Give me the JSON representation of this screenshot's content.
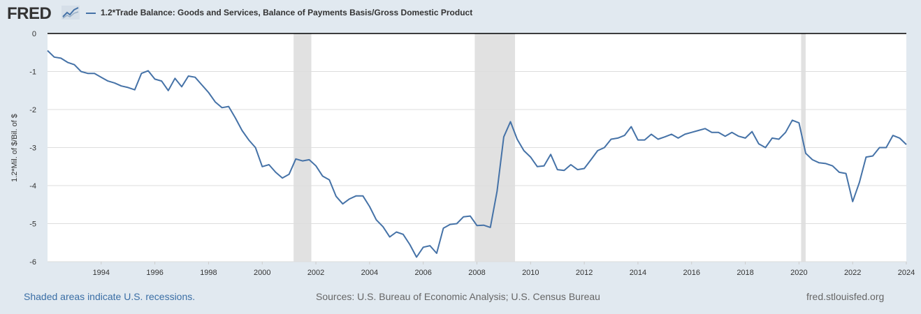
{
  "header": {
    "logo_text": "FRED",
    "series_title": "1.2*Trade Balance: Goods and Services, Balance of Payments Basis/Gross Domestic Product"
  },
  "footer": {
    "recession_note": "Shaded areas indicate U.S. recessions.",
    "sources": "Sources: U.S. Bureau of Economic Analysis; U.S. Census Bureau",
    "site": "fred.stlouisfed.org"
  },
  "colors": {
    "line": "#4572a7",
    "recession": "#e1e1e1",
    "grid": "#dddddd",
    "background": "#e1e9f0",
    "plot": "#ffffff"
  },
  "chart_data": {
    "type": "line",
    "ylabel": "1.2*Mil. of $/Bil. of $",
    "xlim": [
      1992.0,
      2024.0
    ],
    "ylim": [
      -6,
      0
    ],
    "grid": true,
    "legend_position": "top-left",
    "x_ticks": [
      1994,
      1996,
      1998,
      2000,
      2002,
      2004,
      2006,
      2008,
      2010,
      2012,
      2014,
      2016,
      2018,
      2020,
      2022,
      2024
    ],
    "y_ticks": [
      0,
      -1,
      -2,
      -3,
      -4,
      -5,
      -6
    ],
    "recessions": [
      [
        2001.17,
        2001.83
      ],
      [
        2007.92,
        2009.42
      ],
      [
        2020.08,
        2020.25
      ]
    ],
    "series": [
      {
        "x": [
          1992.0,
          1992.25,
          1992.5,
          1992.75,
          1993.0,
          1993.25,
          1993.5,
          1993.75,
          1994.0,
          1994.25,
          1994.5,
          1994.75,
          1995.0,
          1995.25,
          1995.5,
          1995.75,
          1996.0,
          1996.25,
          1996.5,
          1996.75,
          1997.0,
          1997.25,
          1997.5,
          1997.75,
          1998.0,
          1998.25,
          1998.5,
          1998.75,
          1999.0,
          1999.25,
          1999.5,
          1999.75,
          2000.0,
          2000.25,
          2000.5,
          2000.75,
          2001.0,
          2001.25,
          2001.5,
          2001.75,
          2002.0,
          2002.25,
          2002.5,
          2002.75,
          2003.0,
          2003.25,
          2003.5,
          2003.75,
          2004.0,
          2004.25,
          2004.5,
          2004.75,
          2005.0,
          2005.25,
          2005.5,
          2005.75,
          2006.0,
          2006.25,
          2006.5,
          2006.75,
          2007.0,
          2007.25,
          2007.5,
          2007.75,
          2008.0,
          2008.25,
          2008.5,
          2008.75,
          2009.0,
          2009.25,
          2009.5,
          2009.75,
          2010.0,
          2010.25,
          2010.5,
          2010.75,
          2011.0,
          2011.25,
          2011.5,
          2011.75,
          2012.0,
          2012.25,
          2012.5,
          2012.75,
          2013.0,
          2013.25,
          2013.5,
          2013.75,
          2014.0,
          2014.25,
          2014.5,
          2014.75,
          2015.0,
          2015.25,
          2015.5,
          2015.75,
          2016.0,
          2016.25,
          2016.5,
          2016.75,
          2017.0,
          2017.25,
          2017.5,
          2017.75,
          2018.0,
          2018.25,
          2018.5,
          2018.75,
          2019.0,
          2019.25,
          2019.5,
          2019.75,
          2020.0,
          2020.25,
          2020.5,
          2020.75,
          2021.0,
          2021.25,
          2021.5,
          2021.75,
          2022.0,
          2022.25,
          2022.5,
          2022.75,
          2023.0,
          2023.25,
          2023.5,
          2023.75,
          2024.0
        ],
        "values": [
          -0.45,
          -0.62,
          -0.65,
          -0.76,
          -0.82,
          -1.0,
          -1.05,
          -1.05,
          -1.15,
          -1.25,
          -1.3,
          -1.38,
          -1.42,
          -1.48,
          -1.05,
          -0.98,
          -1.2,
          -1.25,
          -1.5,
          -1.18,
          -1.4,
          -1.12,
          -1.15,
          -1.35,
          -1.55,
          -1.8,
          -1.95,
          -1.92,
          -2.22,
          -2.55,
          -2.8,
          -3.0,
          -3.5,
          -3.45,
          -3.65,
          -3.8,
          -3.7,
          -3.3,
          -3.35,
          -3.32,
          -3.48,
          -3.75,
          -3.85,
          -4.28,
          -4.48,
          -4.35,
          -4.27,
          -4.27,
          -4.55,
          -4.9,
          -5.08,
          -5.35,
          -5.22,
          -5.28,
          -5.55,
          -5.88,
          -5.62,
          -5.58,
          -5.78,
          -5.12,
          -5.02,
          -5.0,
          -4.82,
          -4.8,
          -5.05,
          -5.04,
          -5.1,
          -4.15,
          -2.72,
          -2.32,
          -2.78,
          -3.08,
          -3.25,
          -3.5,
          -3.48,
          -3.18,
          -3.58,
          -3.6,
          -3.45,
          -3.58,
          -3.55,
          -3.32,
          -3.08,
          -3.0,
          -2.78,
          -2.75,
          -2.68,
          -2.45,
          -2.8,
          -2.8,
          -2.65,
          -2.78,
          -2.72,
          -2.65,
          -2.75,
          -2.65,
          -2.6,
          -2.55,
          -2.5,
          -2.6,
          -2.6,
          -2.7,
          -2.6,
          -2.7,
          -2.75,
          -2.58,
          -2.9,
          -3.0,
          -2.75,
          -2.78,
          -2.6,
          -2.28,
          -2.35,
          -3.15,
          -3.32,
          -3.4,
          -3.42,
          -3.48,
          -3.65,
          -3.68,
          -4.42,
          -3.92,
          -3.25,
          -3.22,
          -3.0,
          -3.0,
          -2.68,
          -2.75,
          -2.92
        ]
      }
    ]
  }
}
